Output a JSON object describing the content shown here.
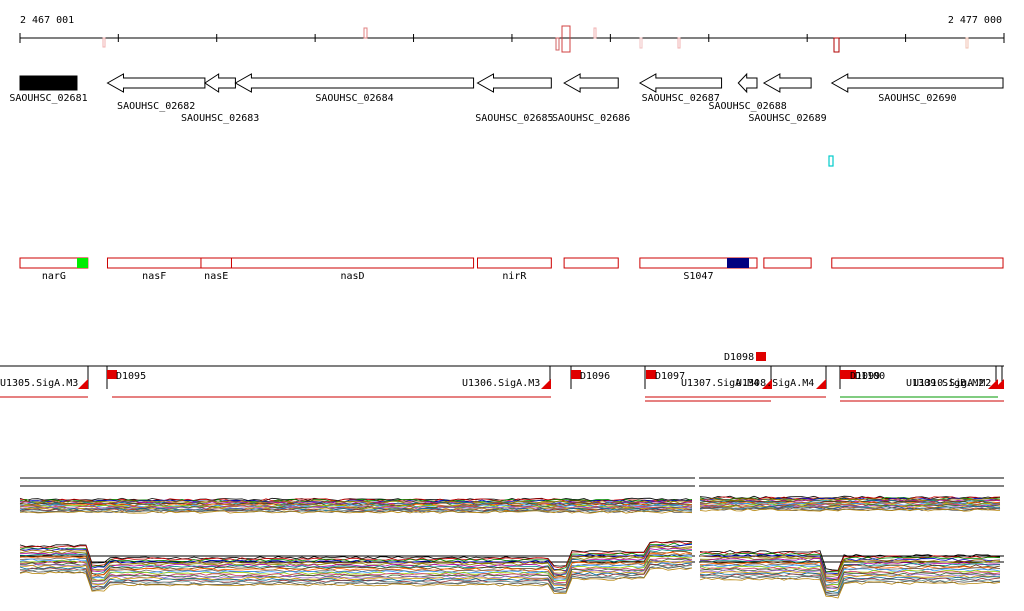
{
  "ruler": {
    "start_label": "2 467 001",
    "end_label": "2 477 000",
    "start_coord": 2467001,
    "end_coord": 2477000
  },
  "genes": [
    {
      "id": "SAOUHSC_02681",
      "start": 2467001,
      "end": 2467580,
      "strand": "+",
      "filled": true
    },
    {
      "id": "SAOUHSC_02682",
      "start": 2467890,
      "end": 2468880,
      "strand": "-",
      "filled": false
    },
    {
      "id": "SAOUHSC_02683",
      "start": 2468880,
      "end": 2469190,
      "strand": "-",
      "filled": false
    },
    {
      "id": "SAOUHSC_02684",
      "start": 2469190,
      "end": 2471610,
      "strand": "-",
      "filled": false
    },
    {
      "id": "SAOUHSC_02685",
      "start": 2471650,
      "end": 2472400,
      "strand": "-",
      "filled": false
    },
    {
      "id": "SAOUHSC_02686",
      "start": 2472530,
      "end": 2473080,
      "strand": "-",
      "filled": false
    },
    {
      "id": "SAOUHSC_02687",
      "start": 2473300,
      "end": 2474130,
      "strand": "-",
      "filled": false
    },
    {
      "id": "SAOUHSC_02688",
      "start": 2474300,
      "end": 2474490,
      "strand": "-",
      "filled": false
    },
    {
      "id": "SAOUHSC_02689",
      "start": 2474560,
      "end": 2475040,
      "strand": "-",
      "filled": false
    },
    {
      "id": "SAOUHSC_02690",
      "start": 2475250,
      "end": 2476990,
      "strand": "-",
      "filled": false
    }
  ],
  "gene_names": [
    {
      "name": "narG",
      "start": 2467001,
      "end": 2467690
    },
    {
      "name": "nasF",
      "start": 2467890,
      "end": 2468840
    },
    {
      "name": "nasE",
      "start": 2468840,
      "end": 2469150
    },
    {
      "name": "nasD",
      "start": 2469150,
      "end": 2471610
    },
    {
      "name": "nirR",
      "start": 2471650,
      "end": 2472400
    },
    {
      "name": "",
      "start": 2472530,
      "end": 2473080
    },
    {
      "name": "S1047",
      "start": 2473300,
      "end": 2474490
    },
    {
      "name": "",
      "start": 2474560,
      "end": 2475040
    },
    {
      "name": "",
      "start": 2475250,
      "end": 2476990
    }
  ],
  "operon_labels": [
    {
      "text": "U1305.SigA.M3"
    },
    {
      "text": "D1095"
    },
    {
      "text": "U1306.SigA.M3"
    },
    {
      "text": "D1096"
    },
    {
      "text": "D1097"
    },
    {
      "text": "D1098"
    },
    {
      "text": "U1307.SigA.M4"
    },
    {
      "text": "U1308.SigA.M4"
    },
    {
      "text": "D1099"
    },
    {
      "text": "D1100"
    },
    {
      "text": "U1309.SigB.M2"
    },
    {
      "text": "U1310.SigA.M2"
    }
  ],
  "colors": {
    "gene_outline": "#000000",
    "feature_outline": "#cc0000",
    "feature_highlight_green": "#00ee00",
    "feature_highlight_blue": "#000080",
    "tick_pink": "#e08080",
    "cyan_marker": "#00cccc",
    "operon_line_green": "#009900"
  }
}
